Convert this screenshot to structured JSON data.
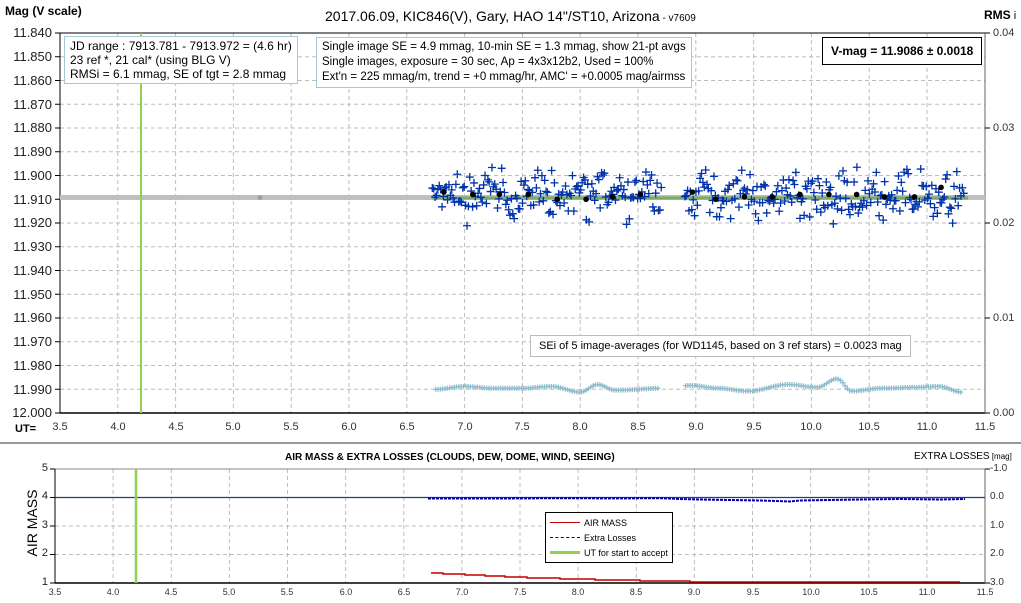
{
  "header": {
    "title": "2017.06.09,  KIC846(V),  Gary,  HAO  14\"/ST10,  Arizona",
    "version": " - v7609",
    "y_axis_label": "Mag (V scale)",
    "rms_label": "RMS",
    "rms_suffix": " i"
  },
  "info_box_left": {
    "line1": "JD range : 7913.781 - 7913.972 = (4.6 hr)",
    "line2": "23 ref *, 21 cal* (using BLG V)",
    "line3": "RMSi = 6.1 mmag, SE of tgt = 2.8 mmag"
  },
  "info_box_center": {
    "line1": "Single image SE = 4.9 mmag, 10-min SE = 1.3 mmag, show 21-pt avgs",
    "line2": "Single images, exposure = 30 sec, Ap = 4x3x12b2, Used = 100%",
    "line3": "Ext'n = 225 mmag/m, trend = +0 mmag/hr, AMC' = +0.0005 mag/airmss"
  },
  "vmag_box": {
    "text": "V-mag = 11.9086 ± 0.0018"
  },
  "sei_box": {
    "text": "SEi of 5 image-averages (for WD1145, based on 3 ref stars) = 0.0023 mag"
  },
  "main_axes": {
    "y_ticks": [
      "11.840",
      "11.850",
      "11.860",
      "11.870",
      "11.880",
      "11.890",
      "11.900",
      "11.910",
      "11.920",
      "11.930",
      "11.940",
      "11.950",
      "11.960",
      "11.970",
      "11.980",
      "11.990",
      "12.000"
    ],
    "rms_ticks": [
      "0.04",
      "0.03",
      "0.02",
      "0.01",
      "0.00"
    ],
    "x_ticks": [
      "3.5",
      "4.0",
      "4.5",
      "5.0",
      "5.5",
      "6.0",
      "6.5",
      "7.0",
      "7.5",
      "8.0",
      "8.5",
      "9.0",
      "9.5",
      "10.0",
      "10.5",
      "11.0",
      "11.5"
    ],
    "x_prefix": "UT="
  },
  "bottom_chart": {
    "title": "AIR MASS & EXTRA LOSSES (CLOUDS, DEW, DOME, WIND, SEEING)",
    "right_title": "EXTRA LOSSES",
    "right_title_unit": " [mag]",
    "y_label": "AIR MASS",
    "y_ticks": [
      "5",
      "4",
      "3",
      "2",
      "1"
    ],
    "right_ticks": [
      "-1.0",
      "0.0",
      "1.0",
      "2.0",
      "3.0"
    ],
    "x_ticks": [
      "3.5",
      "4.0",
      "4.5",
      "5.0",
      "5.5",
      "6.0",
      "6.5",
      "7.0",
      "7.5",
      "8.0",
      "8.5",
      "9.0",
      "9.5",
      "10.0",
      "10.5",
      "11.0",
      "11.5"
    ],
    "legend": [
      {
        "label": "AIR MASS",
        "color": "#c00000",
        "style": "solid"
      },
      {
        "label": "Extra Losses",
        "color": "#00008b",
        "style": "dashed"
      },
      {
        "label": "UT for start to accept",
        "color": "#92d050",
        "style": "solid"
      }
    ]
  },
  "colors": {
    "data_points": "#0033aa",
    "averages": "#000000",
    "rms_series": "#8fbccc",
    "mean_line": "#bfbfbf",
    "fit_line": "#6aa84f",
    "ut_start": "#92d050",
    "airmass": "#c00000",
    "extra_losses": "#00008b"
  },
  "chart_data": [
    {
      "type": "scatter",
      "title": "2017.06.09, KIC846(V), Gary, HAO 14\"/ST10, Arizona - v7609",
      "xlabel": "UT",
      "ylabel": "Mag (V scale)",
      "y2label": "RMS i",
      "xlim": [
        3.5,
        11.5
      ],
      "ylim": [
        12.0,
        11.84
      ],
      "y2lim": [
        0.0,
        0.04
      ],
      "grid": true,
      "series": [
        {
          "name": "21-pt averages",
          "x": [
            6.82,
            7.07,
            7.3,
            7.55,
            7.8,
            8.05,
            8.28,
            8.52,
            8.97,
            9.17,
            9.42,
            9.66,
            9.9,
            10.15,
            10.39,
            10.63,
            10.89,
            11.12
          ],
          "values": [
            11.907,
            11.908,
            11.908,
            11.908,
            11.91,
            11.91,
            11.909,
            11.908,
            11.907,
            11.91,
            11.909,
            11.909,
            11.908,
            11.908,
            11.908,
            11.909,
            11.909,
            11.905
          ]
        },
        {
          "name": "V-mag mean",
          "values": [
            11.9086
          ],
          "x_range": [
            3.5,
            11.5
          ]
        },
        {
          "name": "UT for start to accept",
          "x": [
            4.2
          ]
        },
        {
          "name": "RMS i (right axis)",
          "x": [
            6.75,
            7.0,
            7.25,
            7.5,
            7.75,
            8.0,
            8.15,
            8.3,
            8.7,
            8.95,
            9.2,
            9.45,
            9.8,
            10.05,
            10.22,
            10.35,
            10.6,
            10.9,
            11.1,
            11.3
          ],
          "values": [
            0.0025,
            0.0028,
            0.0026,
            0.0026,
            0.0028,
            0.0022,
            0.003,
            0.0024,
            0.0026,
            0.0029,
            0.0026,
            0.0023,
            0.003,
            0.0027,
            0.0036,
            0.0023,
            0.0026,
            0.0027,
            0.0028,
            0.0022
          ]
        }
      ],
      "annotations": [
        "V-mag = 11.9086 ± 0.0018",
        "SEi of 5 image-averages (for WD1145, based on 3 ref stars) = 0.0023 mag"
      ]
    },
    {
      "type": "line",
      "title": "AIR MASS & EXTRA LOSSES (CLOUDS, DEW, DOME, WIND, SEEING)",
      "xlabel": "UT",
      "ylabel": "AIR MASS",
      "y2label": "EXTRA LOSSES [mag]",
      "xlim": [
        3.5,
        11.5
      ],
      "ylim": [
        1,
        5
      ],
      "y2lim": [
        3.0,
        -1.0
      ],
      "grid": true,
      "legend_position": "center",
      "series": [
        {
          "name": "AIR MASS",
          "x": [
            6.75,
            7.0,
            7.5,
            8.0,
            8.5,
            9.0,
            9.5,
            10.0,
            10.5,
            11.0,
            11.3
          ],
          "values": [
            1.35,
            1.3,
            1.22,
            1.15,
            1.09,
            1.06,
            1.05,
            1.04,
            1.05,
            1.06,
            1.07
          ]
        },
        {
          "name": "Extra Losses",
          "x": [
            6.75,
            7.5,
            8.0,
            8.5,
            8.9,
            9.2,
            9.5,
            9.8,
            10.0,
            10.5,
            11.0,
            11.3
          ],
          "values": [
            0.0,
            0.0,
            0.02,
            0.0,
            0.05,
            0.1,
            0.15,
            0.18,
            0.12,
            0.05,
            0.1,
            0.05
          ]
        },
        {
          "name": "UT for start to accept",
          "x": [
            4.2
          ]
        }
      ]
    }
  ]
}
